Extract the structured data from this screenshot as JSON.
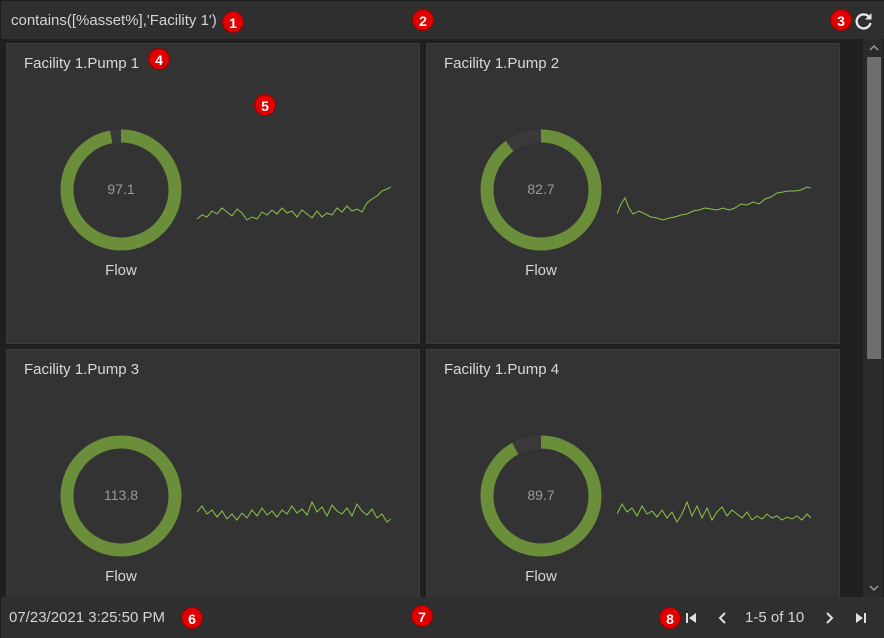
{
  "colors": {
    "gauge_fill": "#6b8e3b",
    "gauge_track": "#3a3a3a",
    "sparkline": "#8bc34a",
    "marker": "#e00000"
  },
  "header": {
    "query": "contains([%asset%],'Facility 1')",
    "refresh_icon": "refresh-icon"
  },
  "cards": [
    {
      "title": "Facility 1.Pump 1",
      "value": "97.1",
      "fraction": 0.97,
      "label": "Flow"
    },
    {
      "title": "Facility 1.Pump 2",
      "value": "82.7",
      "fraction": 0.9,
      "label": "Flow"
    },
    {
      "title": "Facility 1.Pump 3",
      "value": "113.8",
      "fraction": 1.0,
      "label": "Flow"
    },
    {
      "title": "Facility 1.Pump 4",
      "value": "89.7",
      "fraction": 0.92,
      "label": "Flow"
    }
  ],
  "footer": {
    "timestamp": "07/23/2021 3:25:50 PM",
    "page_info": "1-5 of 10",
    "icons": [
      "first-page-icon",
      "prev-page-icon",
      "next-page-icon",
      "last-page-icon"
    ]
  },
  "markers": [
    "1",
    "2",
    "3",
    "4",
    "5",
    "6",
    "7",
    "8"
  ]
}
